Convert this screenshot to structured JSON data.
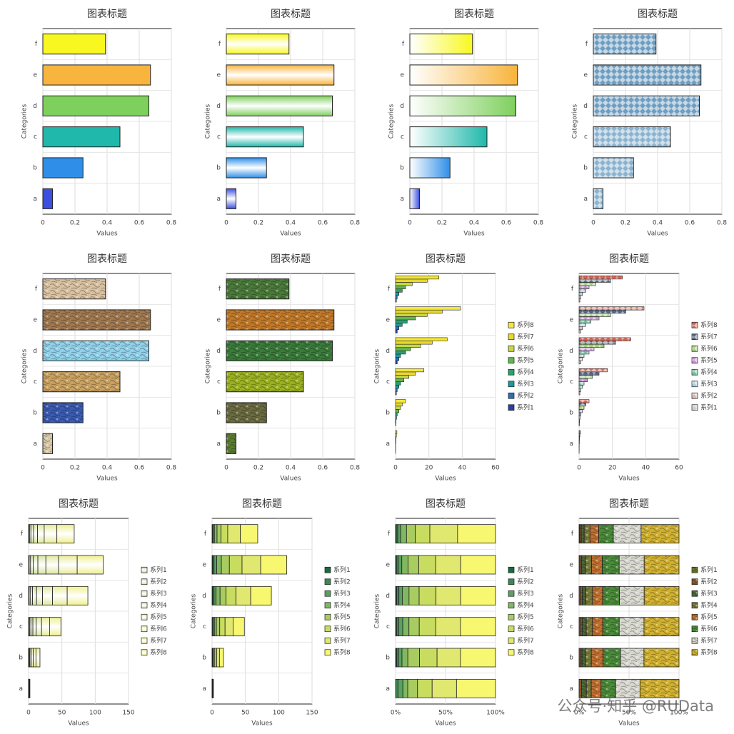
{
  "watermark": "公众号·知乎 @RUData",
  "chart_data": [
    {
      "type": "bar",
      "title": "图表标题",
      "x_label": "Values",
      "y_label": "Categories",
      "categories": [
        "a",
        "b",
        "c",
        "d",
        "e",
        "f"
      ],
      "values": [
        0.06,
        0.25,
        0.48,
        0.66,
        0.67,
        0.39
      ],
      "colors": [
        "#3d4fe0",
        "#2f8fe8",
        "#1fb8aa",
        "#7ed05c",
        "#f8b43c",
        "#f8f820"
      ],
      "fill_style": "solid",
      "xlim": [
        0,
        0.8
      ],
      "xticks": [
        0,
        0.2,
        0.4,
        0.6,
        0.8
      ],
      "grid": true
    },
    {
      "type": "bar",
      "title": "图表标题",
      "x_label": "Values",
      "y_label": "Categories",
      "categories": [
        "a",
        "b",
        "c",
        "d",
        "e",
        "f"
      ],
      "values": [
        0.06,
        0.25,
        0.48,
        0.66,
        0.67,
        0.39
      ],
      "colors": [
        "#3d4fe0",
        "#2f8fe8",
        "#1fb8aa",
        "#7ed05c",
        "#f8b43c",
        "#f8f820"
      ],
      "fill_style": "gradient-center",
      "xlim": [
        0,
        0.8
      ],
      "xticks": [
        0,
        0.2,
        0.4,
        0.6,
        0.8
      ],
      "grid": true
    },
    {
      "type": "bar",
      "title": "图表标题",
      "x_label": "Values",
      "y_label": "Categories",
      "categories": [
        "a",
        "b",
        "c",
        "d",
        "e",
        "f"
      ],
      "values": [
        0.06,
        0.25,
        0.48,
        0.66,
        0.67,
        0.39
      ],
      "colors": [
        "#3d4fe0",
        "#2f8fe8",
        "#1fb8aa",
        "#7ed05c",
        "#f8b43c",
        "#f8f820"
      ],
      "fill_style": "gradient-left",
      "xlim": [
        0,
        0.8
      ],
      "xticks": [
        0,
        0.2,
        0.4,
        0.6,
        0.8
      ],
      "grid": true
    },
    {
      "type": "bar",
      "title": "图表标题",
      "x_label": "Values",
      "y_label": "Categories",
      "categories": [
        "a",
        "b",
        "c",
        "d",
        "e",
        "f"
      ],
      "values": [
        0.06,
        0.25,
        0.48,
        0.66,
        0.67,
        0.39
      ],
      "colors": [
        "#7aa8c8",
        "#7aa8c8",
        "#7aa8c8",
        "#5a90b8",
        "#5a90b8",
        "#5a90b8"
      ],
      "fill_style": "pattern",
      "xlim": [
        0,
        0.8
      ],
      "xticks": [
        0,
        0.2,
        0.4,
        0.6,
        0.8
      ],
      "grid": true
    },
    {
      "type": "bar",
      "title": "图表标题",
      "x_label": "Values",
      "y_label": "Categories",
      "categories": [
        "a",
        "b",
        "c",
        "d",
        "e",
        "f"
      ],
      "values": [
        0.06,
        0.25,
        0.48,
        0.66,
        0.67,
        0.39
      ],
      "colors": [
        "#d8c8a8",
        "#3a5ab0",
        "#c8a060",
        "#90d0e8",
        "#a07850",
        "#d8c0a0"
      ],
      "fill_style": "texture",
      "xlim": [
        0,
        0.8
      ],
      "xticks": [
        0,
        0.2,
        0.4,
        0.6,
        0.8
      ],
      "grid": true
    },
    {
      "type": "bar",
      "title": "图表标题",
      "x_label": "Values",
      "y_label": "Categories",
      "categories": [
        "a",
        "b",
        "c",
        "d",
        "e",
        "f"
      ],
      "values": [
        0.06,
        0.25,
        0.48,
        0.66,
        0.67,
        0.39
      ],
      "colors": [
        "#5a7a30",
        "#6a6a40",
        "#9ab020",
        "#3a7a3a",
        "#c07828",
        "#4a7a3a"
      ],
      "fill_style": "texture",
      "xlim": [
        0,
        0.8
      ],
      "xticks": [
        0,
        0.2,
        0.4,
        0.6,
        0.8
      ],
      "grid": true
    },
    {
      "type": "bar",
      "title": "图表标题",
      "x_label": "Values",
      "y_label": "Categories",
      "categories": [
        "a",
        "b",
        "c",
        "d",
        "e",
        "f"
      ],
      "fill_style": "solid",
      "legend_reversed": true,
      "xlim": [
        0,
        60
      ],
      "xticks": [
        0,
        20,
        40,
        60
      ],
      "grid": true,
      "series": [
        {
          "name": "系列1",
          "color": "#2a3fa8",
          "values": [
            0,
            0.2,
            0.5,
            1,
            1,
            0.5
          ]
        },
        {
          "name": "系列2",
          "color": "#2a6fb8",
          "values": [
            0.05,
            0.3,
            1,
            2,
            2,
            1
          ]
        },
        {
          "name": "系列3",
          "color": "#1a9aa0",
          "values": [
            0.1,
            0.6,
            2,
            3,
            4,
            2
          ]
        },
        {
          "name": "系列4",
          "color": "#2aa070",
          "values": [
            0.1,
            1,
            3,
            6,
            7,
            4
          ]
        },
        {
          "name": "系列5",
          "color": "#60b850",
          "values": [
            0.2,
            2,
            5,
            9,
            12,
            6
          ]
        },
        {
          "name": "系列6",
          "color": "#c8d840",
          "values": [
            0.3,
            3,
            8,
            15,
            19,
            10
          ]
        },
        {
          "name": "系列7",
          "color": "#e8d830",
          "values": [
            0.5,
            4,
            12,
            22,
            28,
            19
          ]
        },
        {
          "name": "系列8",
          "color": "#f4e838",
          "values": [
            0.8,
            6,
            17,
            31,
            39,
            26
          ]
        }
      ]
    },
    {
      "type": "bar",
      "title": "图表标题",
      "x_label": "Values",
      "y_label": "Categories",
      "categories": [
        "a",
        "b",
        "c",
        "d",
        "e",
        "f"
      ],
      "fill_style": "pattern",
      "legend_reversed": true,
      "xlim": [
        0,
        60
      ],
      "xticks": [
        0,
        20,
        40,
        60
      ],
      "grid": true,
      "series": [
        {
          "name": "系列1",
          "color": "#c8c8c8",
          "values": [
            0,
            0.2,
            0.5,
            1,
            1,
            0.5
          ]
        },
        {
          "name": "系列2",
          "color": "#d8b0b0",
          "values": [
            0.05,
            0.3,
            1,
            2,
            2,
            1
          ]
        },
        {
          "name": "系列3",
          "color": "#a0c8e0",
          "values": [
            0.1,
            0.6,
            2,
            3,
            4,
            2
          ]
        },
        {
          "name": "系列4",
          "color": "#60b890",
          "values": [
            0.1,
            1,
            3,
            6,
            7,
            4
          ]
        },
        {
          "name": "系列5",
          "color": "#c080d0",
          "values": [
            0.2,
            2,
            5,
            9,
            12,
            6
          ]
        },
        {
          "name": "系列6",
          "color": "#90c860",
          "values": [
            0.3,
            3,
            8,
            15,
            19,
            10
          ]
        },
        {
          "name": "系列7",
          "color": "#405070",
          "values": [
            0.5,
            4,
            12,
            22,
            28,
            19
          ]
        },
        {
          "name": "系列8",
          "color": "#d05040",
          "values": [
            0.8,
            6,
            17,
            31,
            39,
            26
          ]
        }
      ]
    },
    {
      "type": "bar",
      "title": "图表标题",
      "x_label": "Values",
      "y_label": "Categories",
      "categories": [
        "a",
        "b",
        "c",
        "d",
        "e",
        "f"
      ],
      "fill_style": "gradient-center",
      "stacking": "normal",
      "xlim": [
        0,
        150
      ],
      "xticks": [
        0,
        50,
        100,
        150
      ],
      "grid": true,
      "series": [
        {
          "name": "系列1",
          "color": "#b8d0a0",
          "values": [
            0,
            0.2,
            0.5,
            1,
            1,
            0.5
          ]
        },
        {
          "name": "系列2",
          "color": "#c0d8a0",
          "values": [
            0.05,
            0.3,
            1,
            2,
            2,
            1
          ]
        },
        {
          "name": "系列3",
          "color": "#c8dca0",
          "values": [
            0.1,
            0.6,
            2,
            3,
            4,
            2
          ]
        },
        {
          "name": "系列4",
          "color": "#d0e0a0",
          "values": [
            0.1,
            1,
            3,
            6,
            7,
            4
          ]
        },
        {
          "name": "系列5",
          "color": "#d8e4a0",
          "values": [
            0.2,
            2,
            5,
            9,
            12,
            6
          ]
        },
        {
          "name": "系列6",
          "color": "#e0e8a0",
          "values": [
            0.3,
            3,
            8,
            15,
            19,
            10
          ]
        },
        {
          "name": "系列7",
          "color": "#e8ec98",
          "values": [
            0.5,
            4,
            12,
            22,
            28,
            19
          ]
        },
        {
          "name": "系列8",
          "color": "#f0f090",
          "values": [
            0.8,
            6,
            17,
            31,
            39,
            26
          ]
        }
      ]
    },
    {
      "type": "bar",
      "title": "图表标题",
      "x_label": "Values",
      "y_label": "Categories",
      "categories": [
        "a",
        "b",
        "c",
        "d",
        "e",
        "f"
      ],
      "fill_style": "solid",
      "stacking": "normal",
      "xlim": [
        0,
        150
      ],
      "xticks": [
        0,
        50,
        100,
        150
      ],
      "grid": true,
      "series": [
        {
          "name": "系列1",
          "color": "#1a6a40",
          "values": [
            0,
            0.2,
            0.5,
            1,
            1,
            0.5
          ]
        },
        {
          "name": "系列2",
          "color": "#3a8a50",
          "values": [
            0.05,
            0.3,
            1,
            2,
            2,
            1
          ]
        },
        {
          "name": "系列3",
          "color": "#5aa060",
          "values": [
            0.1,
            0.6,
            2,
            3,
            4,
            2
          ]
        },
        {
          "name": "系列4",
          "color": "#80b860",
          "values": [
            0.1,
            1,
            3,
            6,
            7,
            4
          ]
        },
        {
          "name": "系列5",
          "color": "#a8cc60",
          "values": [
            0.2,
            2,
            5,
            9,
            12,
            6
          ]
        },
        {
          "name": "系列6",
          "color": "#c8dc60",
          "values": [
            0.3,
            3,
            8,
            15,
            19,
            10
          ]
        },
        {
          "name": "系列7",
          "color": "#e0e870",
          "values": [
            0.5,
            4,
            12,
            22,
            28,
            19
          ]
        },
        {
          "name": "系列8",
          "color": "#f8f870",
          "values": [
            0.8,
            6,
            17,
            31,
            39,
            26
          ]
        }
      ]
    },
    {
      "type": "bar",
      "title": "图表标题",
      "x_label": "Values",
      "y_label": "Categories",
      "categories": [
        "a",
        "b",
        "c",
        "d",
        "e",
        "f"
      ],
      "fill_style": "solid",
      "stacking": "percent",
      "xlim": [
        0,
        100
      ],
      "xticks": [
        {
          "value": 0,
          "label": "0%"
        },
        {
          "value": 50,
          "label": "50%"
        },
        {
          "value": 100,
          "label": "100%"
        }
      ],
      "grid": true,
      "series": [
        {
          "name": "系列1",
          "color": "#1a6a40",
          "values": [
            0,
            0.2,
            0.5,
            1,
            1,
            0.5
          ]
        },
        {
          "name": "系列2",
          "color": "#3a8a50",
          "values": [
            0.05,
            0.3,
            1,
            2,
            2,
            1
          ]
        },
        {
          "name": "系列3",
          "color": "#5aa060",
          "values": [
            0.1,
            0.6,
            2,
            3,
            4,
            2
          ]
        },
        {
          "name": "系列4",
          "color": "#80b860",
          "values": [
            0.1,
            1,
            3,
            6,
            7,
            4
          ]
        },
        {
          "name": "系列5",
          "color": "#a8cc60",
          "values": [
            0.2,
            2,
            5,
            9,
            12,
            6
          ]
        },
        {
          "name": "系列6",
          "color": "#c8dc60",
          "values": [
            0.3,
            3,
            8,
            15,
            19,
            10
          ]
        },
        {
          "name": "系列7",
          "color": "#e0e870",
          "values": [
            0.5,
            4,
            12,
            22,
            28,
            19
          ]
        },
        {
          "name": "系列8",
          "color": "#f8f870",
          "values": [
            0.8,
            6,
            17,
            31,
            39,
            26
          ]
        }
      ]
    },
    {
      "type": "bar",
      "title": "图表标题",
      "x_label": "Values",
      "y_label": "Categories",
      "categories": [
        "a",
        "b",
        "c",
        "d",
        "e",
        "f"
      ],
      "fill_style": "texture",
      "stacking": "percent",
      "xlim": [
        0,
        100
      ],
      "xticks": [
        {
          "value": 0,
          "label": "0%"
        },
        {
          "value": 50,
          "label": "50%"
        },
        {
          "value": 100,
          "label": "100%"
        }
      ],
      "grid": true,
      "series": [
        {
          "name": "系列1",
          "color": "#6a7a2a",
          "values": [
            0,
            0.2,
            0.5,
            1,
            1,
            0.5
          ]
        },
        {
          "name": "系列2",
          "color": "#8a5a2a",
          "values": [
            0.05,
            0.3,
            1,
            2,
            2,
            1
          ]
        },
        {
          "name": "系列3",
          "color": "#4a6a3a",
          "values": [
            0.1,
            0.6,
            2,
            3,
            4,
            2
          ]
        },
        {
          "name": "系列4",
          "color": "#7a7a3a",
          "values": [
            0.1,
            1,
            3,
            6,
            7,
            4
          ]
        },
        {
          "name": "系列5",
          "color": "#c07030",
          "values": [
            0.2,
            2,
            5,
            9,
            12,
            6
          ]
        },
        {
          "name": "系列6",
          "color": "#4a8a3a",
          "values": [
            0.3,
            3,
            8,
            15,
            19,
            10
          ]
        },
        {
          "name": "系列7",
          "color": "#d8d8d0",
          "values": [
            0.5,
            4,
            12,
            22,
            28,
            19
          ]
        },
        {
          "name": "系列8",
          "color": "#d0b030",
          "values": [
            0.8,
            6,
            17,
            31,
            39,
            26
          ]
        }
      ]
    }
  ]
}
